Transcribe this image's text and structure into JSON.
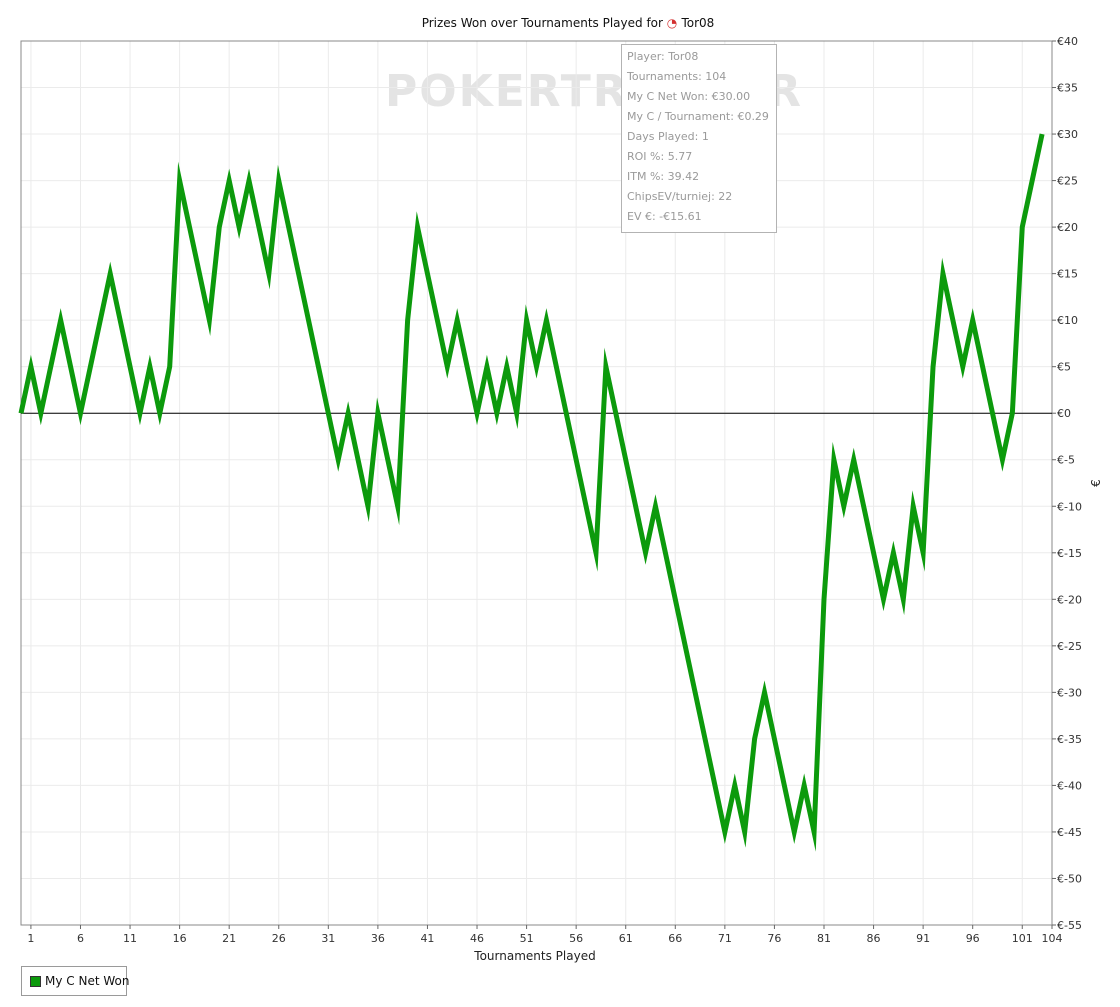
{
  "chart_data": {
    "type": "line",
    "title_prefix": "Prizes Won over Tournaments Played for",
    "title_player": "Tor08",
    "xlabel": "Tournaments Played",
    "ylabel": "€",
    "xlim": [
      0,
      104
    ],
    "ylim": [
      -55,
      40
    ],
    "x_ticks": [
      1,
      6,
      11,
      16,
      21,
      26,
      31,
      36,
      41,
      46,
      51,
      56,
      61,
      66,
      71,
      76,
      81,
      86,
      91,
      96,
      101,
      104
    ],
    "y_ticks": [
      40,
      35,
      30,
      25,
      20,
      15,
      10,
      5,
      0,
      -5,
      -10,
      -15,
      -20,
      -25,
      -30,
      -35,
      -40,
      -45,
      -50,
      -55
    ],
    "y_tick_labels": [
      "€40",
      "€35",
      "€30",
      "€25",
      "€20",
      "€15",
      "€10",
      "€5",
      "€0",
      "€-5",
      "€-10",
      "€-15",
      "€-20",
      "€-25",
      "€-30",
      "€-35",
      "€-40",
      "€-45",
      "€-50",
      "€-55"
    ],
    "grid": true,
    "legend_position": "bottom-left",
    "series": [
      {
        "name": "My C Net Won",
        "color": "#0c9a0c",
        "values": [
          0,
          5,
          0,
          5,
          10,
          5,
          0,
          5,
          10,
          15,
          10,
          5,
          0,
          5,
          0,
          5,
          25,
          20,
          15,
          10,
          20,
          25,
          20,
          25,
          20,
          15,
          25,
          20,
          15,
          10,
          5,
          0,
          -5,
          0,
          -5,
          -10,
          0,
          -5,
          -10,
          10,
          20,
          15,
          10,
          5,
          10,
          5,
          0,
          5,
          0,
          5,
          0,
          10,
          5,
          10,
          5,
          0,
          -5,
          -10,
          -15,
          5,
          0,
          -5,
          -10,
          -15,
          -10,
          -15,
          -20,
          -25,
          -30,
          -35,
          -40,
          -45,
          -40,
          -45,
          -35,
          -30,
          -35,
          -40,
          -45,
          -40,
          -45,
          -20,
          -5,
          -10,
          -5,
          -10,
          -15,
          -20,
          -15,
          -20,
          -10,
          -15,
          5,
          15,
          10,
          5,
          10,
          5,
          0,
          -5,
          0,
          20,
          25,
          30
        ]
      }
    ]
  },
  "tooltip": {
    "lines": [
      "Player: Tor08",
      "Tournaments: 104",
      "My C Net Won: €30.00",
      "My C / Tournament: €0.29",
      "Days Played: 1",
      "ROI %: 5.77",
      "ITM %: 39.42",
      "ChipsEV/turniej: 22",
      "EV €: -€15.61"
    ]
  },
  "watermark": "POKERTRACKER",
  "legend": {
    "label": "My C Net Won"
  },
  "colors": {
    "series": "#0c9a0c",
    "grid": "#ebebeb",
    "zero_line": "#000000"
  }
}
